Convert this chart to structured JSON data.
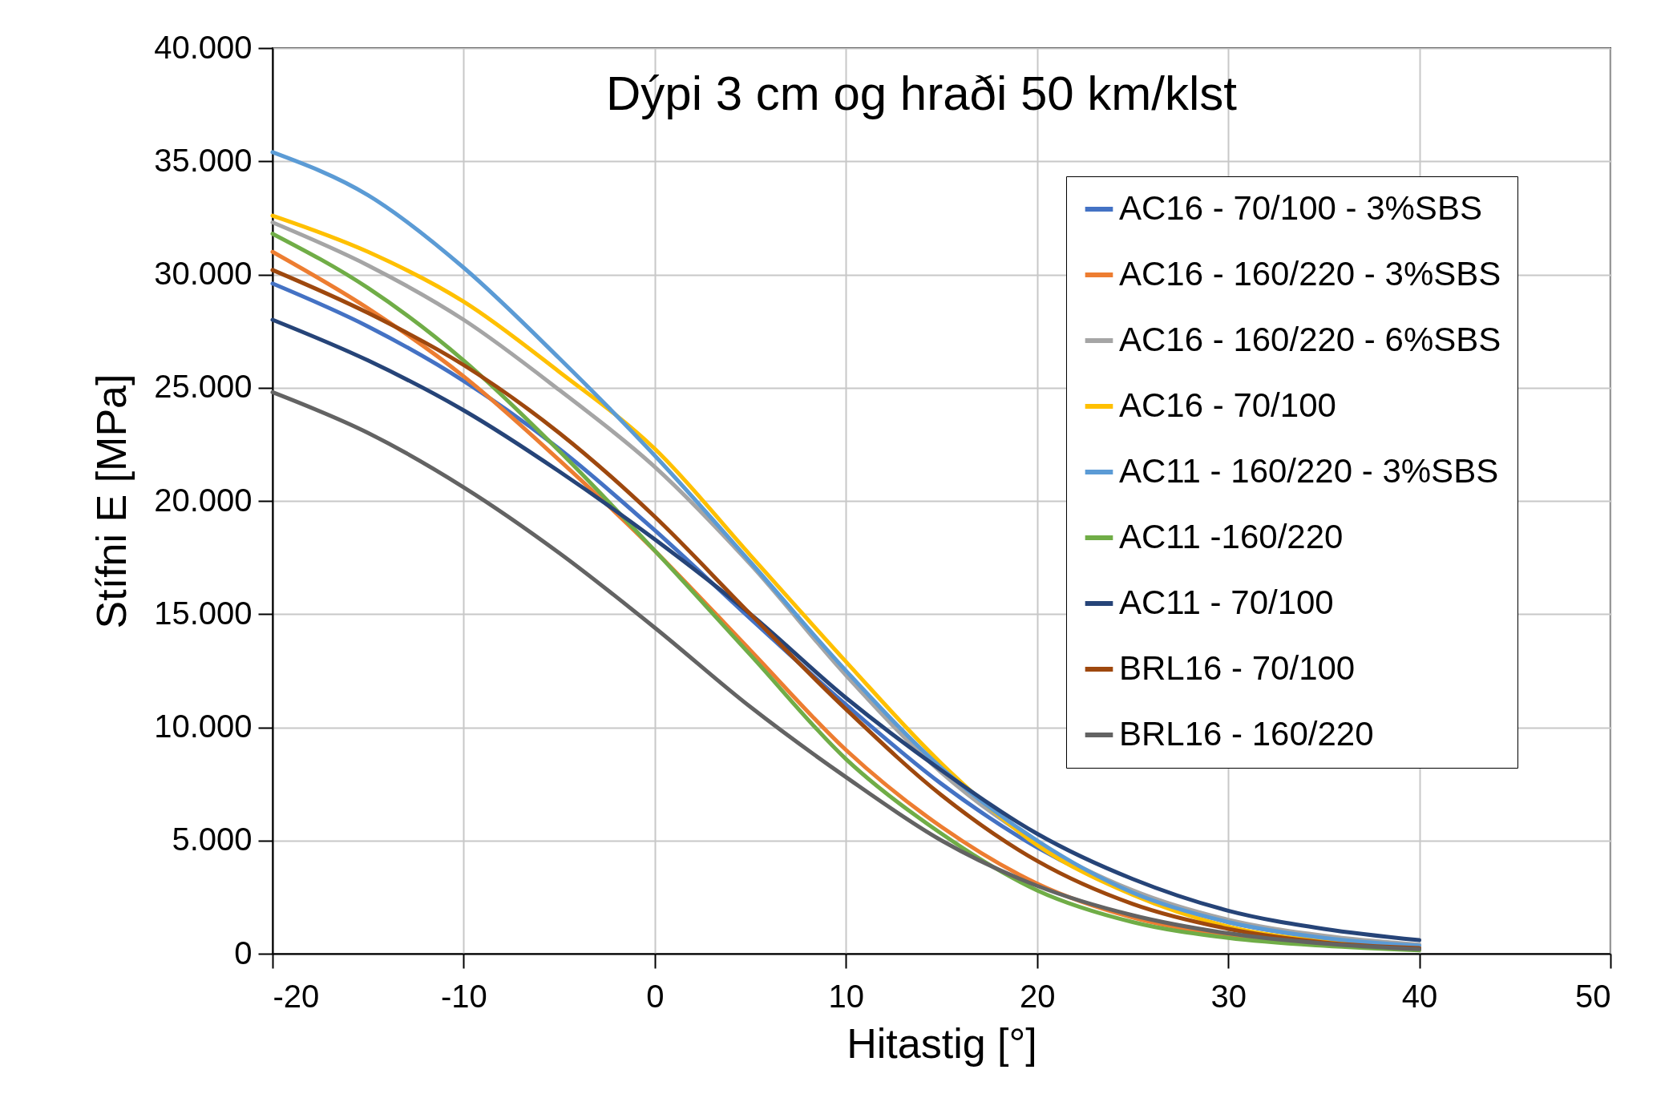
{
  "chart_data": {
    "type": "line",
    "title": "Dýpi 3 cm og hraði 50 km/klst",
    "xlabel": "Hitastig [°]",
    "ylabel": "Stífni E [MPa]",
    "x": [
      -20,
      -15,
      -10,
      -5,
      0,
      5,
      10,
      15,
      20,
      25,
      30,
      35,
      40
    ],
    "xlim": [
      -20,
      50
    ],
    "xticks": [
      -20,
      -10,
      0,
      10,
      20,
      30,
      40,
      50
    ],
    "ylim": [
      0,
      40000
    ],
    "yticks": [
      0,
      {
        "value": 5000,
        "label": "5.000"
      },
      {
        "value": 10000,
        "label": "10.000"
      },
      {
        "value": 15000,
        "label": "15.000"
      },
      {
        "value": 20000,
        "label": "20.000"
      },
      {
        "value": 25000,
        "label": "25.000"
      },
      {
        "value": 30000,
        "label": "30.000"
      },
      {
        "value": 35000,
        "label": "35.000"
      },
      {
        "value": 40000,
        "label": "40.000"
      }
    ],
    "grid": true,
    "legend": "top right",
    "marker": "none",
    "line_style": "solid",
    "series": [
      {
        "name": "AC16 - 70/100 - 3%SBS",
        "color": "#4472c4",
        "values": [
          29600,
          27700,
          25300,
          22300,
          18700,
          14800,
          11000,
          7500,
          4700,
          2700,
          1400,
          700,
          350
        ]
      },
      {
        "name": "AC16 - 160/220 - 3%SBS",
        "color": "#ed7d31",
        "values": [
          31000,
          28500,
          25500,
          21800,
          17800,
          13400,
          9000,
          5600,
          3100,
          1600,
          800,
          400,
          200
        ]
      },
      {
        "name": "AC16 - 160/220 - 6%SBS",
        "color": "#a5a5a5",
        "values": [
          32300,
          30400,
          28000,
          24900,
          21500,
          17200,
          12300,
          8000,
          4900,
          2800,
          1500,
          800,
          400
        ]
      },
      {
        "name": "AC16 - 70/100",
        "color": "#ffc000",
        "values": [
          32600,
          31000,
          28800,
          25700,
          22300,
          17600,
          12900,
          8400,
          4800,
          2600,
          1200,
          550,
          250
        ]
      },
      {
        "name": "AC11 - 160/220 - 3%SBS",
        "color": "#5b9bd5",
        "values": [
          35400,
          33500,
          30300,
          26300,
          22000,
          17300,
          12500,
          8200,
          5000,
          2700,
          1400,
          700,
          350
        ]
      },
      {
        "name": "AC11 -160/220",
        "color": "#70ad47",
        "values": [
          31800,
          29400,
          26200,
          22200,
          17800,
          13200,
          8600,
          5300,
          2800,
          1400,
          700,
          350,
          150
        ]
      },
      {
        "name": "AC11 - 70/100",
        "color": "#264478",
        "values": [
          28000,
          26200,
          24000,
          21300,
          18300,
          15000,
          11300,
          8100,
          5300,
          3300,
          1900,
          1100,
          600
        ]
      },
      {
        "name": "BRL16 - 70/100",
        "color": "#9e480e",
        "values": [
          30200,
          28300,
          26000,
          23000,
          19300,
          15000,
          10800,
          7000,
          4100,
          2200,
          1100,
          500,
          250
        ]
      },
      {
        "name": "BRL16 - 160/220",
        "color": "#636363",
        "values": [
          24800,
          23000,
          20600,
          17700,
          14400,
          10900,
          7800,
          5000,
          3000,
          1700,
          900,
          450,
          200
        ]
      }
    ]
  }
}
